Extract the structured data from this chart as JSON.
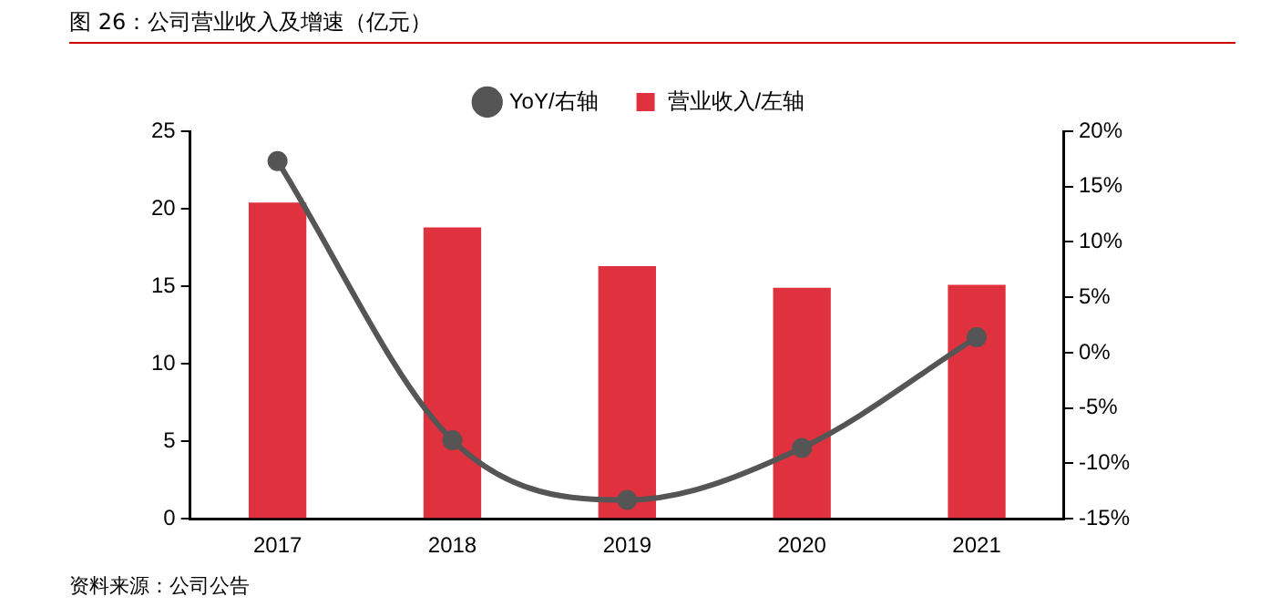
{
  "chart_data": {
    "type": "bar",
    "title": "图 26：公司营业收入及增速（亿元）",
    "categories": [
      "2017",
      "2018",
      "2019",
      "2020",
      "2021"
    ],
    "series": [
      {
        "name": "营业收入/左轴",
        "color": "#e0323e",
        "values": [
          20.4,
          18.8,
          16.3,
          14.9,
          15.1
        ]
      },
      {
        "name": "YoY/右轴",
        "type": "line",
        "axis": "y2",
        "color": "#555555",
        "values": [
          17.3,
          -7.9,
          -13.3,
          -8.6,
          1.4
        ]
      }
    ],
    "ylim": [
      0,
      25
    ],
    "yticks": [
      0,
      5,
      10,
      15,
      20,
      25
    ],
    "y2lim": [
      -15,
      20
    ],
    "y2ticks": [
      {
        "value": -15,
        "label": "-15%"
      },
      {
        "value": -10,
        "label": "-10%"
      },
      {
        "value": -5,
        "label": "-5%"
      },
      {
        "value": 0,
        "label": "0%"
      },
      {
        "value": 5,
        "label": "5%"
      },
      {
        "value": 10,
        "label": "10%"
      },
      {
        "value": 15,
        "label": "15%"
      },
      {
        "value": 20,
        "label": "20%"
      }
    ],
    "legend": "top",
    "grid": false,
    "marker": "circle",
    "line_style": "solid",
    "annotations": [
      "资料来源：公司公告"
    ]
  }
}
